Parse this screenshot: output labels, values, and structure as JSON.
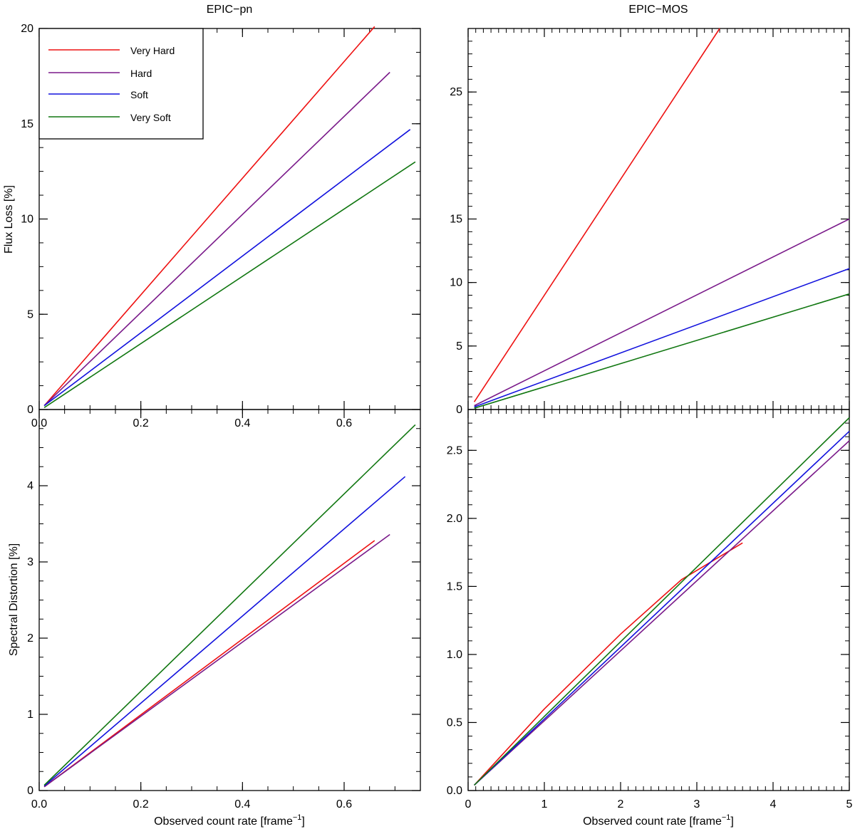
{
  "chart_data": [
    {
      "type": "line",
      "title": "EPIC−pn",
      "xlabel": "",
      "ylabel": "Flux Loss [%]",
      "xlim": [
        0.0,
        0.75
      ],
      "ylim": [
        0,
        20
      ],
      "yticks": [
        0,
        5,
        10,
        15,
        20
      ],
      "xticks": [
        0.0,
        0.2,
        0.4,
        0.6
      ],
      "legend_position": "top-left",
      "series": [
        {
          "name": "Very Hard",
          "color": "#ee1111",
          "x": [
            0.01,
            0.66
          ],
          "y": [
            0.2,
            20.1
          ]
        },
        {
          "name": "Hard",
          "color": "#7a1a8a",
          "x": [
            0.01,
            0.69
          ],
          "y": [
            0.2,
            17.7
          ]
        },
        {
          "name": "Soft",
          "color": "#1111dd",
          "x": [
            0.01,
            0.73
          ],
          "y": [
            0.2,
            14.7
          ]
        },
        {
          "name": "Very Soft",
          "color": "#117711",
          "x": [
            0.01,
            0.74
          ],
          "y": [
            0.1,
            13.0
          ]
        }
      ]
    },
    {
      "type": "line",
      "title": "EPIC−MOS",
      "xlabel": "",
      "ylabel": "",
      "xlim": [
        0,
        5
      ],
      "ylim": [
        0,
        30
      ],
      "yticks": [
        0,
        5,
        10,
        15,
        25
      ],
      "xticks": [],
      "series": [
        {
          "name": "Very Hard",
          "color": "#ee1111",
          "x": [
            0.08,
            3.3
          ],
          "y": [
            0.6,
            30.0
          ]
        },
        {
          "name": "Hard",
          "color": "#7a1a8a",
          "x": [
            0.08,
            5.0
          ],
          "y": [
            0.3,
            15.0
          ]
        },
        {
          "name": "Soft",
          "color": "#1111dd",
          "x": [
            0.08,
            5.0
          ],
          "y": [
            0.2,
            11.1
          ]
        },
        {
          "name": "Very Soft",
          "color": "#117711",
          "x": [
            0.08,
            5.0
          ],
          "y": [
            0.1,
            9.1
          ]
        }
      ]
    },
    {
      "type": "line",
      "title": "",
      "xlabel": "Observed count rate [frame",
      "xlabel_sup": "−1",
      "xlabel_end": "]",
      "ylabel": "Spectral Distortion [%]",
      "xlim": [
        0.0,
        0.75
      ],
      "ylim": [
        0,
        5.0
      ],
      "yticks": [
        0,
        1,
        2,
        3,
        4
      ],
      "xticks": [
        0.0,
        0.2,
        0.4,
        0.6
      ],
      "series": [
        {
          "name": "Very Hard",
          "color": "#ee1111",
          "x": [
            0.01,
            0.66
          ],
          "y": [
            0.05,
            3.28
          ]
        },
        {
          "name": "Hard",
          "color": "#7a1a8a",
          "x": [
            0.01,
            0.69
          ],
          "y": [
            0.05,
            3.36
          ]
        },
        {
          "name": "Soft",
          "color": "#1111dd",
          "x": [
            0.01,
            0.72
          ],
          "y": [
            0.06,
            4.12
          ]
        },
        {
          "name": "Very Soft",
          "color": "#117711",
          "x": [
            0.01,
            0.74
          ],
          "y": [
            0.07,
            4.8
          ]
        }
      ]
    },
    {
      "type": "line",
      "title": "",
      "xlabel": "Observed count rate [frame",
      "xlabel_sup": "−1",
      "xlabel_end": "]",
      "ylabel": "",
      "xlim": [
        0,
        5
      ],
      "ylim": [
        0.0,
        2.8
      ],
      "yticks": [
        "0.0",
        "0.5",
        "1.0",
        "1.5",
        "2.0",
        "2.5"
      ],
      "xticks": [
        0,
        1,
        2,
        3,
        4,
        5
      ],
      "series": [
        {
          "name": "Very Hard",
          "color": "#ee1111",
          "x": [
            0.08,
            1.0,
            2.0,
            2.8,
            3.6
          ],
          "y": [
            0.04,
            0.6,
            1.15,
            1.55,
            1.82
          ]
        },
        {
          "name": "Hard",
          "color": "#7a1a8a",
          "x": [
            0.08,
            5.0
          ],
          "y": [
            0.04,
            2.57
          ]
        },
        {
          "name": "Soft",
          "color": "#1111dd",
          "x": [
            0.08,
            5.0
          ],
          "y": [
            0.04,
            2.64
          ]
        },
        {
          "name": "Very Soft",
          "color": "#117711",
          "x": [
            0.08,
            5.0
          ],
          "y": [
            0.04,
            2.74
          ]
        }
      ]
    }
  ],
  "legend": {
    "items": [
      {
        "label": "Very Hard",
        "color": "#ee1111"
      },
      {
        "label": "Hard",
        "color": "#7a1a8a"
      },
      {
        "label": "Soft",
        "color": "#1111dd"
      },
      {
        "label": "Very Soft",
        "color": "#117711"
      }
    ]
  }
}
